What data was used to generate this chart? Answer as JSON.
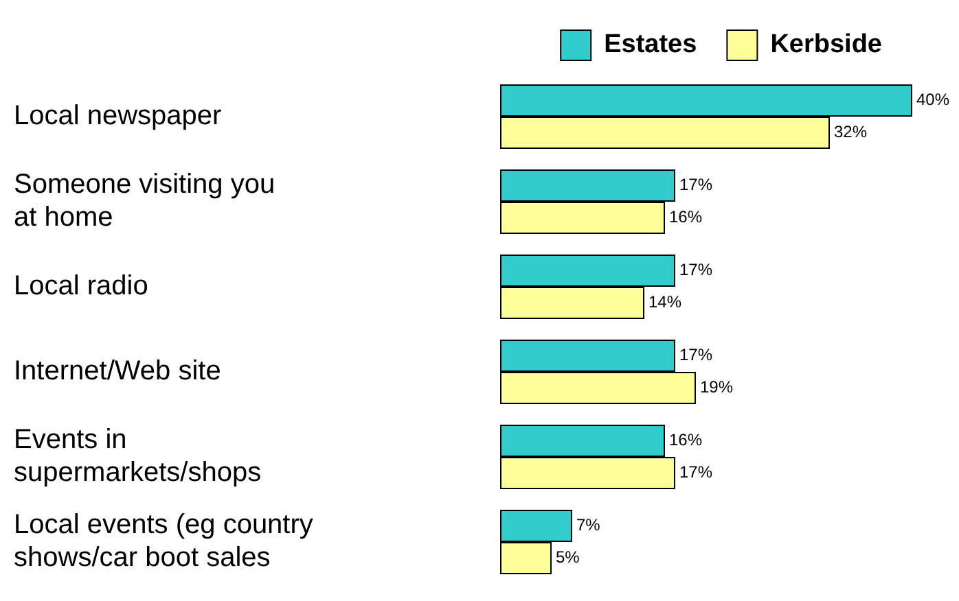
{
  "chart_data": {
    "type": "bar",
    "orientation": "horizontal",
    "categories": [
      "Local newspaper",
      "Someone visiting you\nat home",
      "Local radio",
      "Internet/Web site",
      "Events in\nsupermarkets/shops",
      "Local events (eg country\nshows/car boot sales"
    ],
    "series": [
      {
        "name": "Estates",
        "color": "#33cccc",
        "values": [
          40,
          17,
          17,
          17,
          16,
          7
        ],
        "value_labels": [
          "40%",
          "17%",
          "17%",
          "17%",
          "16%",
          "7%"
        ]
      },
      {
        "name": "Kerbside",
        "color": "#ffff99",
        "values": [
          32,
          16,
          14,
          19,
          17,
          5
        ],
        "value_labels": [
          "32%",
          "16%",
          "14%",
          "19%",
          "17%",
          "5%"
        ]
      }
    ],
    "legend": "top right"
  }
}
